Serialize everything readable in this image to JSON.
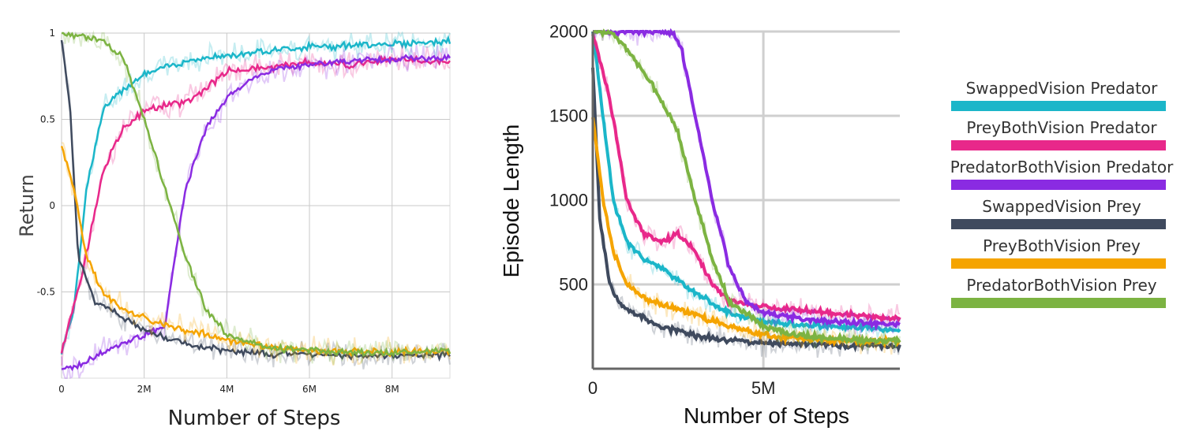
{
  "chart_data": [
    {
      "type": "line",
      "ylabel": "Return",
      "xlabel": "Number of Steps",
      "x_ticks": [
        "0",
        "2M",
        "4M",
        "6M",
        "8M"
      ],
      "y_ticks": [
        "1",
        "0.5",
        "0",
        "-0.5"
      ],
      "x_range_steps": [
        0,
        9400000
      ],
      "y_range": [
        -1,
        1
      ],
      "grid": true,
      "series": [
        {
          "name": "SwappedVision Predator",
          "color": "#1bb6c9",
          "x": [
            0,
            0.3,
            0.6,
            1.0,
            1.5,
            2.0,
            3.0,
            4.0,
            5.0,
            6.0,
            7.0,
            8.0,
            9.4
          ],
          "y": [
            -0.85,
            -0.6,
            0.1,
            0.55,
            0.68,
            0.76,
            0.84,
            0.87,
            0.9,
            0.92,
            0.93,
            0.94,
            0.95
          ]
        },
        {
          "name": "PreyBothVision Predator",
          "color": "#e8288a",
          "x": [
            0,
            0.5,
            1.0,
            1.5,
            2.0,
            2.5,
            3.0,
            3.5,
            4.0,
            5.0,
            6.0,
            7.0,
            8.0,
            9.4
          ],
          "y": [
            -0.85,
            -0.4,
            0.2,
            0.45,
            0.55,
            0.58,
            0.6,
            0.68,
            0.78,
            0.8,
            0.83,
            0.82,
            0.85,
            0.83
          ]
        },
        {
          "name": "PredatorBothVision Predator",
          "color": "#8a2be2",
          "x": [
            0,
            0.5,
            1.0,
            1.5,
            2.0,
            2.5,
            3.0,
            3.5,
            4.0,
            4.5,
            5.0,
            6.0,
            7.0,
            8.0,
            9.4
          ],
          "y": [
            -0.95,
            -0.92,
            -0.85,
            -0.8,
            -0.75,
            -0.7,
            0.1,
            0.45,
            0.62,
            0.72,
            0.78,
            0.82,
            0.84,
            0.85,
            0.86
          ]
        },
        {
          "name": "SwappedVision Prey",
          "color": "#3f4a5e",
          "x": [
            0,
            0.2,
            0.4,
            0.8,
            1.5,
            2.0,
            3.0,
            4.0,
            5.0,
            6.0,
            7.0,
            8.0,
            9.4
          ],
          "y": [
            0.95,
            0.6,
            -0.3,
            -0.55,
            -0.65,
            -0.72,
            -0.8,
            -0.84,
            -0.86,
            -0.86,
            -0.87,
            -0.87,
            -0.87
          ]
        },
        {
          "name": "PreyBothVision Prey",
          "color": "#f5a400",
          "x": [
            0,
            0.3,
            0.6,
            1.0,
            1.5,
            2.0,
            3.0,
            4.0,
            5.0,
            6.0,
            7.0,
            8.0,
            9.4
          ],
          "y": [
            0.35,
            0.1,
            -0.3,
            -0.5,
            -0.6,
            -0.65,
            -0.72,
            -0.78,
            -0.82,
            -0.84,
            -0.85,
            -0.85,
            -0.84
          ]
        },
        {
          "name": "PredatorBothVision Prey",
          "color": "#7cb342",
          "x": [
            0,
            0.5,
            1.0,
            1.5,
            2.0,
            2.5,
            3.0,
            3.5,
            4.0,
            5.0,
            6.0,
            7.0,
            8.0,
            9.4
          ],
          "y": [
            1.0,
            0.98,
            0.95,
            0.85,
            0.5,
            0.1,
            -0.3,
            -0.6,
            -0.75,
            -0.82,
            -0.84,
            -0.85,
            -0.85,
            -0.84
          ]
        }
      ]
    },
    {
      "type": "line",
      "ylabel": "Episode Length",
      "xlabel": "Number of Steps",
      "x_ticks": [
        "0",
        "5M"
      ],
      "y_ticks": [
        "2000",
        "1500",
        "1000",
        "500"
      ],
      "x_range_steps": [
        0,
        9000000
      ],
      "y_range": [
        0,
        2000
      ],
      "grid": true,
      "series": [
        {
          "name": "SwappedVision Predator",
          "color": "#1bb6c9",
          "x": [
            0,
            0.3,
            0.6,
            1.0,
            1.5,
            2.0,
            3.0,
            4.0,
            5.0,
            6.0,
            7.0,
            8.0,
            9.0
          ],
          "y": [
            2000,
            1500,
            1000,
            750,
            650,
            600,
            450,
            330,
            280,
            260,
            250,
            240,
            230
          ]
        },
        {
          "name": "PreyBothVision Predator",
          "color": "#e8288a",
          "x": [
            0,
            0.5,
            1.0,
            1.5,
            2.0,
            2.5,
            3.0,
            3.5,
            4.0,
            5.0,
            6.0,
            7.0,
            8.0,
            9.0
          ],
          "y": [
            2000,
            1600,
            1000,
            800,
            750,
            800,
            700,
            500,
            400,
            370,
            350,
            330,
            310,
            300
          ]
        },
        {
          "name": "PredatorBothVision Predator",
          "color": "#8a2be2",
          "x": [
            0,
            1.0,
            2.0,
            2.3,
            2.6,
            3.0,
            3.5,
            4.0,
            4.5,
            5.0,
            6.0,
            7.0,
            8.0,
            9.0
          ],
          "y": [
            2000,
            2000,
            2000,
            2000,
            1900,
            1500,
            1000,
            600,
            400,
            330,
            300,
            280,
            270,
            260
          ]
        },
        {
          "name": "SwappedVision Prey",
          "color": "#3f4a5e",
          "x": [
            0,
            0.2,
            0.5,
            0.8,
            1.5,
            2.0,
            3.0,
            4.0,
            5.0,
            6.0,
            7.0,
            8.0,
            9.0
          ],
          "y": [
            1800,
            900,
            500,
            380,
            300,
            250,
            200,
            170,
            150,
            145,
            140,
            140,
            135
          ]
        },
        {
          "name": "PreyBothVision Prey",
          "color": "#f5a400",
          "x": [
            0,
            0.3,
            0.6,
            1.0,
            1.5,
            2.0,
            3.0,
            4.0,
            5.0,
            6.0,
            7.0,
            8.0,
            9.0
          ],
          "y": [
            1500,
            1000,
            700,
            500,
            420,
            380,
            320,
            250,
            200,
            180,
            170,
            165,
            160
          ]
        },
        {
          "name": "PredatorBothVision Prey",
          "color": "#7cb342",
          "x": [
            0,
            0.5,
            1.0,
            1.5,
            2.0,
            2.5,
            3.0,
            3.5,
            4.0,
            5.0,
            6.0,
            7.0,
            8.0,
            9.0
          ],
          "y": [
            2000,
            2000,
            1900,
            1750,
            1600,
            1400,
            1000,
            650,
            400,
            250,
            200,
            180,
            170,
            165
          ]
        }
      ]
    }
  ]
}
